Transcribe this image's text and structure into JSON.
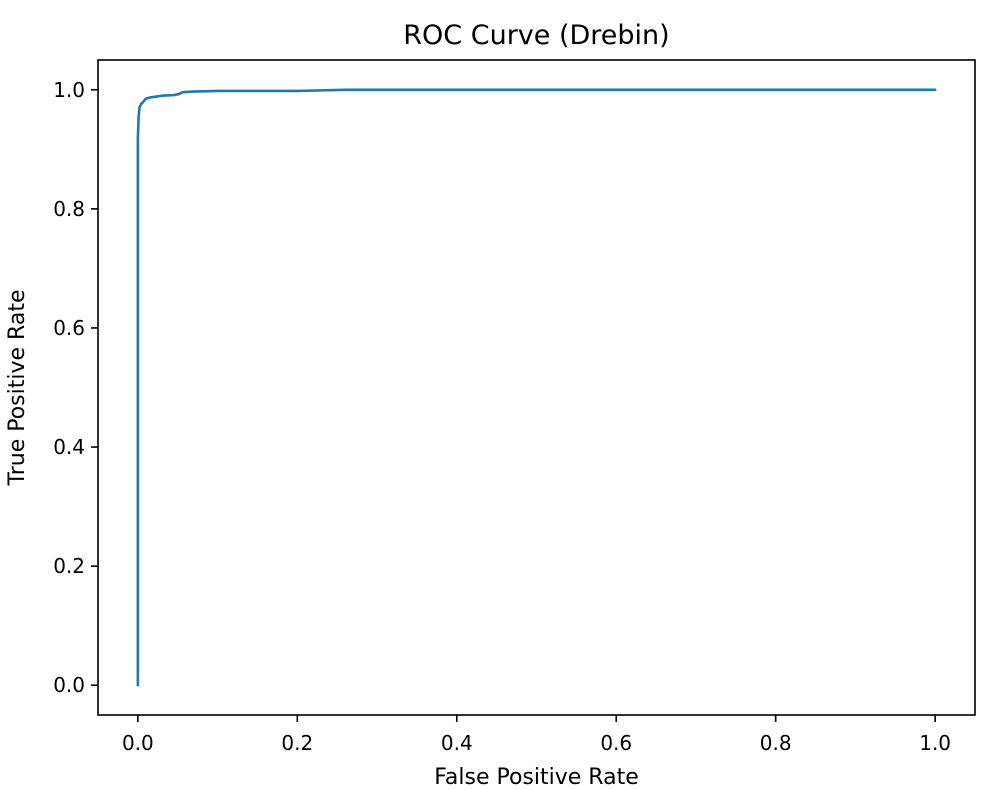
{
  "chart_data": {
    "type": "line",
    "title": "ROC Curve (Drebin)",
    "xlabel": "False Positive Rate",
    "ylabel": "True Positive Rate",
    "xlim": [
      -0.05,
      1.05
    ],
    "ylim": [
      -0.05,
      1.05
    ],
    "xticks": [
      0.0,
      0.2,
      0.4,
      0.6,
      0.8,
      1.0
    ],
    "xtick_labels": [
      "0.0",
      "0.2",
      "0.4",
      "0.6",
      "0.8",
      "1.0"
    ],
    "yticks": [
      0.0,
      0.2,
      0.4,
      0.6,
      0.8,
      1.0
    ],
    "ytick_labels": [
      "0.0",
      "0.2",
      "0.4",
      "0.6",
      "0.8",
      "1.0"
    ],
    "grid": false,
    "legend": null,
    "colors": {
      "line": "#1f77b4"
    },
    "series": [
      {
        "x": [
          0.0,
          0.0,
          0.0,
          0.001,
          0.002,
          0.004,
          0.007,
          0.01,
          0.015,
          0.02,
          0.03,
          0.045,
          0.052,
          0.056,
          0.07,
          0.1,
          0.15,
          0.2,
          0.23,
          0.26,
          0.4,
          0.6,
          0.8,
          1.0
        ],
        "y": [
          0.0,
          0.5,
          0.92,
          0.955,
          0.97,
          0.976,
          0.98,
          0.985,
          0.987,
          0.988,
          0.99,
          0.991,
          0.993,
          0.996,
          0.997,
          0.998,
          0.998,
          0.998,
          0.999,
          1.0,
          1.0,
          1.0,
          1.0,
          1.0
        ]
      }
    ]
  }
}
